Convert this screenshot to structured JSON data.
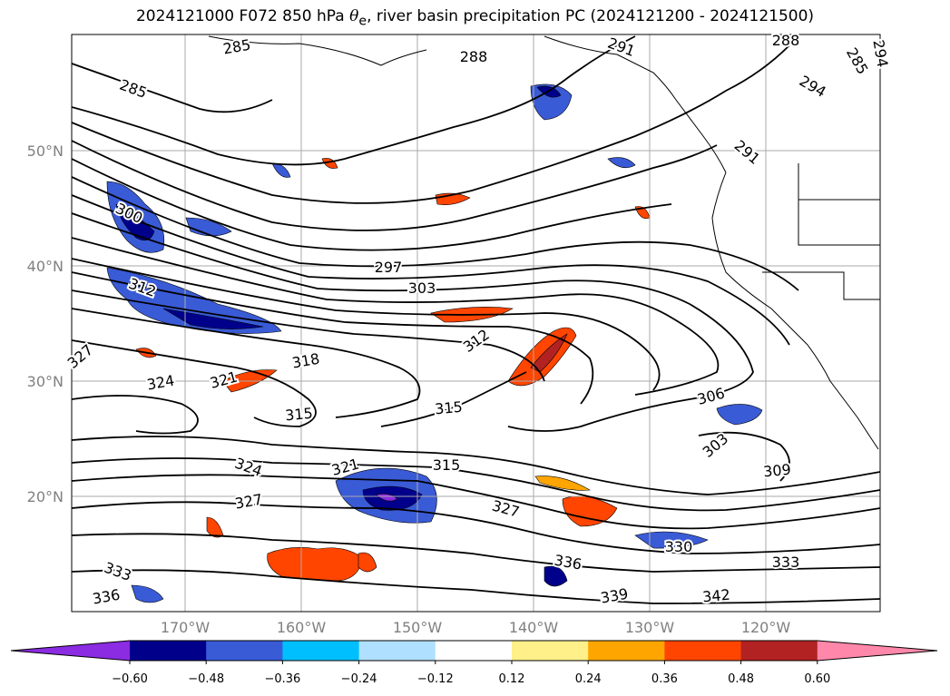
{
  "title": {
    "prefix": "2024121000 F072 850 hPa ",
    "theta_symbol": "θ",
    "theta_sub": "e",
    "suffix": ", river basin precipitation PC (2024121200 - 2024121500)"
  },
  "map": {
    "lat_labels": [
      "50°N",
      "40°N",
      "30°N",
      "20°N"
    ],
    "lon_labels": [
      "170°W",
      "160°W",
      "150°W",
      "140°W",
      "130°W",
      "120°W"
    ]
  },
  "contour_labels": [
    "285",
    "288",
    "291",
    "285",
    "288",
    "294",
    "285",
    "294",
    "291",
    "300",
    "297",
    "303",
    "312",
    "312",
    "318",
    "327",
    "324",
    "321",
    "315",
    "315",
    "306",
    "303",
    "309",
    "324",
    "321",
    "315",
    "327",
    "327",
    "330",
    "333",
    "336",
    "339",
    "342",
    "333",
    "336"
  ],
  "colorbar": {
    "tick_labels": [
      "−0.60",
      "−0.48",
      "−0.36",
      "−0.24",
      "−0.12",
      "0.12",
      "0.24",
      "0.36",
      "0.48",
      "0.60"
    ],
    "colors": [
      "#8b2be2",
      "#00008b",
      "#3a5bd6",
      "#00bfff",
      "#b0e0ff",
      "#ffffff",
      "#fff08a",
      "#ffa500",
      "#ff4500",
      "#b22222",
      "#ff88aa"
    ]
  }
}
